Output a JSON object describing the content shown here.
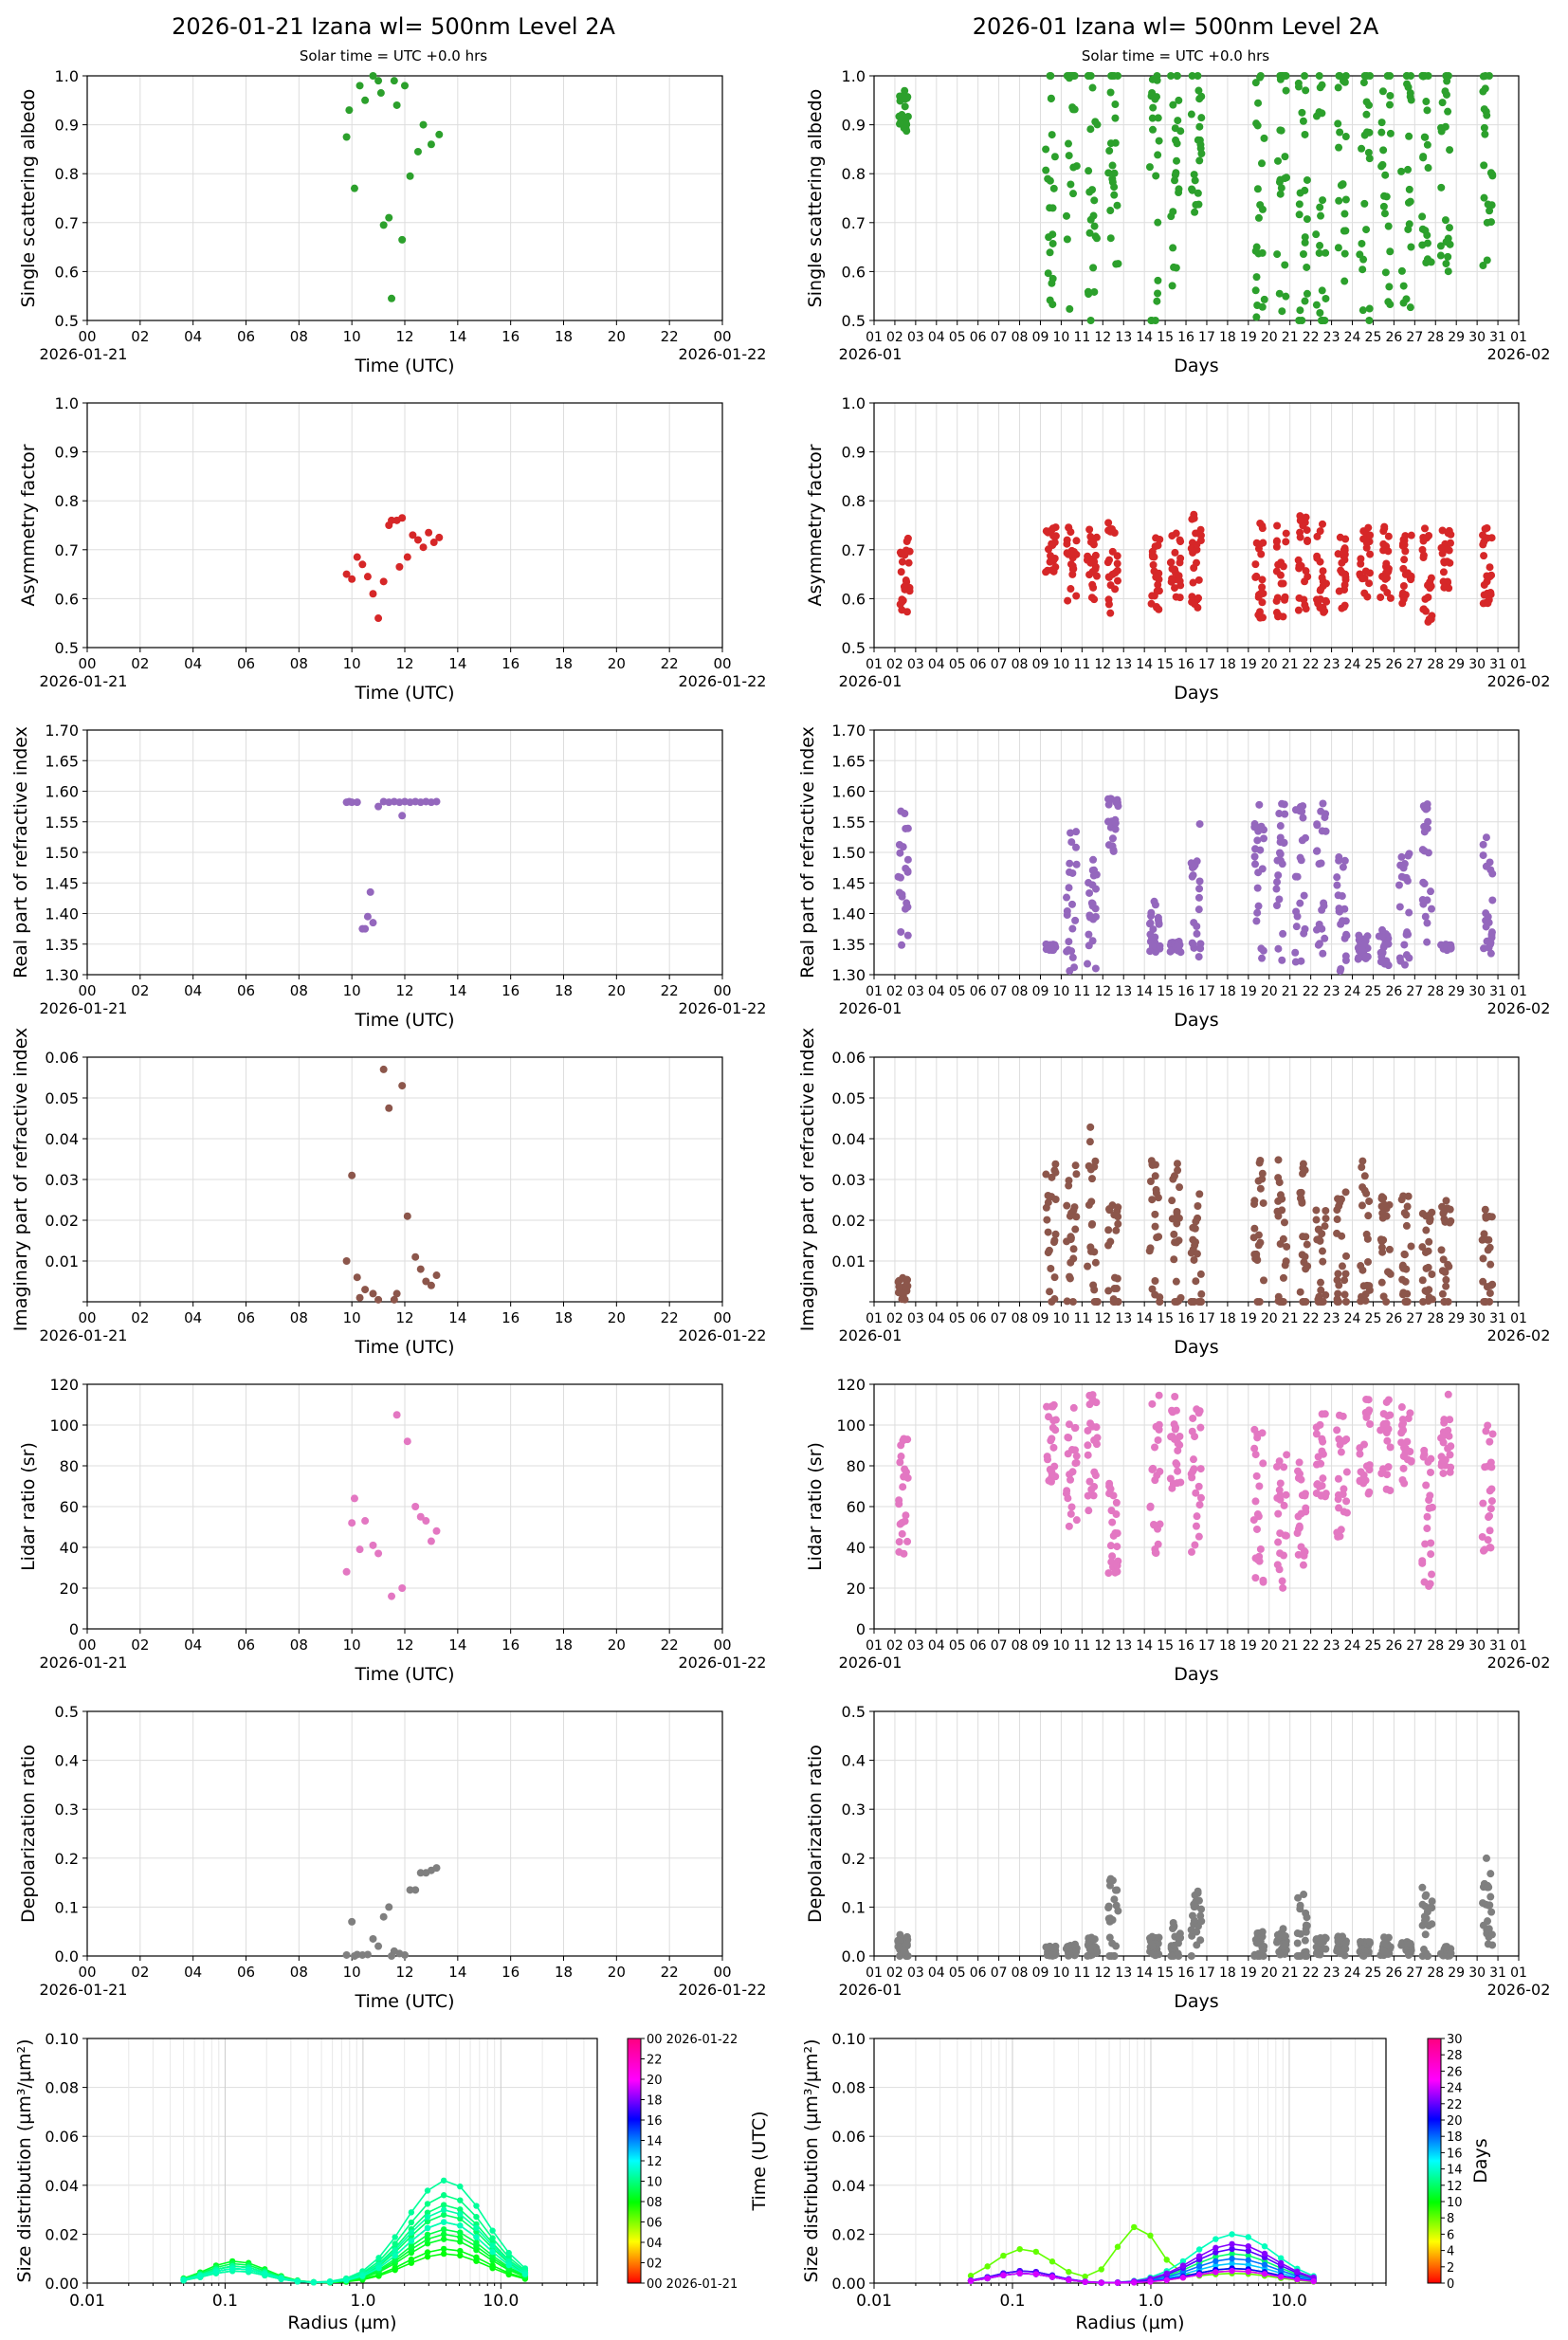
{
  "titles": {
    "left": "2026-01-21  Izana  wl= 500nm  Level 2A",
    "right": "2026-01  Izana  wl= 500nm  Level 2A",
    "subtitle_left": "Solar time = UTC +0.0 hrs",
    "subtitle_right": "Solar time = UTC +0.0 hrs"
  },
  "axes": {
    "daily_ticks": [
      "00",
      "02",
      "04",
      "06",
      "08",
      "10",
      "12",
      "14",
      "16",
      "18",
      "20",
      "22",
      "00"
    ],
    "daily_start": "2026-01-21",
    "daily_end": "2026-01-22",
    "daily_xlabel": "Time (UTC)",
    "monthly_ticks": [
      "01",
      "02",
      "03",
      "04",
      "05",
      "06",
      "07",
      "08",
      "09",
      "10",
      "11",
      "12",
      "13",
      "14",
      "15",
      "16",
      "17",
      "18",
      "19",
      "20",
      "21",
      "22",
      "23",
      "24",
      "25",
      "26",
      "27",
      "28",
      "29",
      "30",
      "31",
      "01"
    ],
    "monthly_start": "2026-01",
    "monthly_end": "2026-02",
    "monthly_xlabel": "Days",
    "radius_xlabel": "Radius (µm)",
    "radius_ticks": [
      "0.01",
      "0.1",
      "1.0",
      "10.0"
    ],
    "size_ylabel": "Size distribution (µm³/µm²)",
    "cb_left_label": "Time (UTC)",
    "cb_right_label": "Days",
    "cb_left_ticks": [
      "00 2026-01-21",
      "02",
      "04",
      "06",
      "08",
      "10",
      "12",
      "14",
      "16",
      "18",
      "20",
      "22",
      "00 2026-01-22"
    ],
    "cb_right_ticks": [
      "0",
      "2",
      "4",
      "6",
      "8",
      "10",
      "12",
      "14",
      "16",
      "18",
      "20",
      "22",
      "24",
      "26",
      "28",
      "30"
    ]
  },
  "chart_data": [
    {
      "type": "scatter",
      "name": "ssa",
      "title": "",
      "ylabel": "Single scattering albedo",
      "color": "#2ca02c",
      "ylim": [
        0.5,
        1.0
      ],
      "yticks": [
        "0.5",
        "0.6",
        "0.7",
        "0.8",
        "0.9",
        "1.0"
      ],
      "daily": {
        "x": [
          9.8,
          9.9,
          10.1,
          10.3,
          10.5,
          10.8,
          11.0,
          11.2,
          11.4,
          11.5,
          11.7,
          11.9,
          12.2,
          12.5,
          12.7,
          13.0,
          13.3,
          11.1,
          11.6,
          12.0
        ],
        "y": [
          0.875,
          0.93,
          0.77,
          0.98,
          0.95,
          1.0,
          0.99,
          0.695,
          0.71,
          0.545,
          0.94,
          0.665,
          0.795,
          0.845,
          0.9,
          0.86,
          0.88,
          0.965,
          0.99,
          0.98
        ]
      },
      "monthly_clusters": [
        [
          2.4,
          0.92,
          0.05
        ],
        [
          9.5,
          0.78,
          0.25
        ],
        [
          10.5,
          0.82,
          0.3
        ],
        [
          11.5,
          0.78,
          0.3
        ],
        [
          12.5,
          0.85,
          0.25
        ],
        [
          14.5,
          0.72,
          0.3
        ],
        [
          15.5,
          0.8,
          0.25
        ],
        [
          16.5,
          0.87,
          0.15
        ],
        [
          19.6,
          0.78,
          0.3
        ],
        [
          20.6,
          0.8,
          0.3
        ],
        [
          21.6,
          0.78,
          0.3
        ],
        [
          22.5,
          0.75,
          0.3
        ],
        [
          23.5,
          0.82,
          0.25
        ],
        [
          24.6,
          0.75,
          0.3
        ],
        [
          25.6,
          0.8,
          0.3
        ],
        [
          26.6,
          0.82,
          0.3
        ],
        [
          27.6,
          0.82,
          0.3
        ],
        [
          28.5,
          0.85,
          0.25
        ],
        [
          30.5,
          0.85,
          0.25
        ]
      ]
    },
    {
      "type": "scatter",
      "name": "asym",
      "title": "",
      "ylabel": "Asymmetry factor",
      "color": "#d62728",
      "ylim": [
        0.5,
        1.0
      ],
      "yticks": [
        "0.5",
        "0.6",
        "0.7",
        "0.8",
        "0.9",
        "1.0"
      ],
      "daily": {
        "x": [
          9.8,
          10.0,
          10.2,
          10.4,
          10.6,
          10.8,
          11.0,
          11.2,
          11.4,
          11.5,
          11.7,
          11.9,
          12.1,
          12.3,
          12.5,
          12.7,
          12.9,
          13.1,
          13.3,
          11.8
        ],
        "y": [
          0.65,
          0.64,
          0.685,
          0.67,
          0.645,
          0.61,
          0.56,
          0.635,
          0.75,
          0.76,
          0.76,
          0.765,
          0.685,
          0.73,
          0.72,
          0.705,
          0.735,
          0.715,
          0.725,
          0.665
        ]
      },
      "monthly_clusters": [
        [
          2.5,
          0.65,
          0.08
        ],
        [
          9.5,
          0.7,
          0.05
        ],
        [
          10.5,
          0.67,
          0.08
        ],
        [
          11.5,
          0.67,
          0.08
        ],
        [
          12.5,
          0.67,
          0.1
        ],
        [
          14.5,
          0.65,
          0.08
        ],
        [
          15.5,
          0.67,
          0.08
        ],
        [
          16.5,
          0.68,
          0.1
        ],
        [
          19.5,
          0.66,
          0.1
        ],
        [
          20.6,
          0.66,
          0.1
        ],
        [
          21.6,
          0.67,
          0.1
        ],
        [
          22.5,
          0.66,
          0.1
        ],
        [
          23.5,
          0.66,
          0.08
        ],
        [
          24.6,
          0.68,
          0.08
        ],
        [
          25.6,
          0.68,
          0.08
        ],
        [
          26.6,
          0.67,
          0.08
        ],
        [
          27.6,
          0.65,
          0.1
        ],
        [
          28.5,
          0.68,
          0.06
        ],
        [
          30.5,
          0.67,
          0.08
        ]
      ]
    },
    {
      "type": "scatter",
      "name": "rri",
      "title": "",
      "ylabel": "Real part of refractive index",
      "color": "#9467bd",
      "ylim": [
        1.3,
        1.7
      ],
      "yticks": [
        "1.30",
        "1.35",
        "1.40",
        "1.45",
        "1.50",
        "1.55",
        "1.60",
        "1.65",
        "1.70"
      ],
      "daily": {
        "x": [
          9.8,
          9.9,
          10.0,
          10.2,
          10.4,
          10.6,
          10.8,
          11.0,
          11.2,
          11.4,
          11.6,
          11.8,
          12.0,
          12.2,
          12.4,
          12.6,
          12.8,
          13.0,
          13.2,
          10.5,
          10.7,
          11.9
        ],
        "y": [
          1.582,
          1.583,
          1.582,
          1.582,
          1.375,
          1.395,
          1.385,
          1.575,
          1.583,
          1.582,
          1.583,
          1.582,
          1.583,
          1.582,
          1.583,
          1.582,
          1.583,
          1.582,
          1.583,
          1.375,
          1.435,
          1.56
        ]
      },
      "monthly_clusters": [
        [
          2.4,
          1.46,
          0.12
        ],
        [
          9.5,
          1.345,
          0.005
        ],
        [
          10.5,
          1.4,
          0.15
        ],
        [
          11.5,
          1.4,
          0.1
        ],
        [
          12.5,
          1.55,
          0.05
        ],
        [
          14.5,
          1.37,
          0.05
        ],
        [
          15.5,
          1.345,
          0.01
        ],
        [
          16.5,
          1.45,
          0.13
        ],
        [
          19.5,
          1.45,
          0.13
        ],
        [
          20.6,
          1.45,
          0.13
        ],
        [
          21.5,
          1.45,
          0.13
        ],
        [
          22.5,
          1.45,
          0.13
        ],
        [
          23.5,
          1.4,
          0.1
        ],
        [
          24.5,
          1.345,
          0.02
        ],
        [
          25.5,
          1.345,
          0.03
        ],
        [
          26.5,
          1.4,
          0.1
        ],
        [
          27.6,
          1.45,
          0.13
        ],
        [
          28.5,
          1.345,
          0.005
        ],
        [
          30.5,
          1.45,
          0.13
        ]
      ]
    },
    {
      "type": "scatter",
      "name": "iri",
      "title": "",
      "ylabel": "Imaginary part of refractive index",
      "color": "#8c564b",
      "ylim": [
        0.0,
        0.06
      ],
      "yticks": [
        "",
        "0.01",
        "0.02",
        "0.03",
        "0.04",
        "0.05",
        "0.06"
      ],
      "daily": {
        "x": [
          9.8,
          10.0,
          10.2,
          10.5,
          10.8,
          11.0,
          11.2,
          11.4,
          11.7,
          11.9,
          12.1,
          12.4,
          12.6,
          12.8,
          13.0,
          13.2,
          11.6,
          10.3
        ],
        "y": [
          0.01,
          0.031,
          0.006,
          0.003,
          0.002,
          0.0005,
          0.057,
          0.0475,
          0.002,
          0.053,
          0.021,
          0.011,
          0.008,
          0.005,
          0.004,
          0.0065,
          0.0005,
          0.001
        ]
      },
      "monthly_clusters": [
        [
          2.4,
          0.003,
          0.003
        ],
        [
          9.5,
          0.015,
          0.02
        ],
        [
          10.5,
          0.015,
          0.02
        ],
        [
          11.5,
          0.02,
          0.025
        ],
        [
          12.5,
          0.01,
          0.015
        ],
        [
          14.5,
          0.015,
          0.02
        ],
        [
          15.5,
          0.015,
          0.02
        ],
        [
          16.5,
          0.015,
          0.02
        ],
        [
          19.5,
          0.015,
          0.02
        ],
        [
          20.6,
          0.015,
          0.02
        ],
        [
          21.6,
          0.015,
          0.02
        ],
        [
          22.5,
          0.01,
          0.015
        ],
        [
          23.5,
          0.012,
          0.015
        ],
        [
          24.6,
          0.015,
          0.02
        ],
        [
          25.6,
          0.012,
          0.015
        ],
        [
          26.6,
          0.012,
          0.015
        ],
        [
          27.6,
          0.01,
          0.015
        ],
        [
          28.5,
          0.01,
          0.015
        ],
        [
          30.5,
          0.01,
          0.015
        ]
      ]
    },
    {
      "type": "scatter",
      "name": "lidar",
      "title": "",
      "ylabel": "Lidar ratio (sr)",
      "color": "#e377c2",
      "ylim": [
        0,
        120
      ],
      "yticks": [
        "0",
        "20",
        "40",
        "60",
        "80",
        "100",
        "120"
      ],
      "daily": {
        "x": [
          9.8,
          10.0,
          10.1,
          10.3,
          10.5,
          10.8,
          11.0,
          11.5,
          11.7,
          11.9,
          12.1,
          12.4,
          12.6,
          12.8,
          13.0,
          13.2
        ],
        "y": [
          28,
          52,
          64,
          39,
          53,
          41,
          37,
          16,
          105,
          20,
          92,
          60,
          55,
          53,
          43,
          48
        ]
      },
      "monthly_clusters": [
        [
          2.4,
          65,
          30
        ],
        [
          9.5,
          90,
          20
        ],
        [
          10.5,
          80,
          30
        ],
        [
          11.5,
          85,
          30
        ],
        [
          12.5,
          50,
          25
        ],
        [
          14.5,
          75,
          40
        ],
        [
          15.5,
          85,
          30
        ],
        [
          16.5,
          70,
          40
        ],
        [
          19.5,
          60,
          40
        ],
        [
          20.6,
          55,
          35
        ],
        [
          21.6,
          55,
          30
        ],
        [
          22.5,
          85,
          25
        ],
        [
          23.5,
          75,
          30
        ],
        [
          24.6,
          90,
          25
        ],
        [
          25.6,
          90,
          25
        ],
        [
          26.6,
          90,
          20
        ],
        [
          27.6,
          55,
          35
        ],
        [
          28.5,
          95,
          20
        ],
        [
          30.5,
          65,
          35
        ]
      ]
    },
    {
      "type": "scatter",
      "name": "depol",
      "title": "",
      "ylabel": "Depolarization ratio",
      "color": "#7f7f7f",
      "ylim": [
        0.0,
        0.5
      ],
      "yticks": [
        "0.0",
        "0.1",
        "0.2",
        "0.3",
        "0.4",
        "0.5"
      ],
      "daily": {
        "x": [
          9.8,
          10.0,
          10.2,
          10.4,
          10.6,
          10.8,
          11.0,
          11.2,
          11.4,
          11.6,
          11.8,
          12.0,
          12.2,
          12.4,
          12.6,
          12.8,
          13.0,
          13.2,
          10.1,
          11.5
        ],
        "y": [
          0.002,
          0.07,
          0.003,
          0.002,
          0.003,
          0.035,
          0.02,
          0.08,
          0.1,
          0.01,
          0.005,
          0.002,
          0.135,
          0.135,
          0.17,
          0.17,
          0.175,
          0.18,
          0.0,
          0.0
        ]
      },
      "monthly_clusters": [
        [
          2.4,
          0.02,
          0.03
        ],
        [
          9.5,
          0.01,
          0.01
        ],
        [
          10.5,
          0.015,
          0.015
        ],
        [
          11.5,
          0.02,
          0.02
        ],
        [
          12.5,
          0.08,
          0.1
        ],
        [
          14.5,
          0.02,
          0.02
        ],
        [
          15.5,
          0.03,
          0.04
        ],
        [
          16.5,
          0.06,
          0.08
        ],
        [
          19.5,
          0.02,
          0.03
        ],
        [
          20.6,
          0.03,
          0.03
        ],
        [
          21.6,
          0.06,
          0.08
        ],
        [
          22.5,
          0.02,
          0.02
        ],
        [
          23.5,
          0.02,
          0.02
        ],
        [
          24.6,
          0.015,
          0.015
        ],
        [
          25.6,
          0.02,
          0.02
        ],
        [
          26.6,
          0.015,
          0.015
        ],
        [
          27.6,
          0.06,
          0.08
        ],
        [
          28.5,
          0.01,
          0.01
        ],
        [
          30.5,
          0.1,
          0.1
        ]
      ]
    }
  ],
  "size_data": {
    "type": "line",
    "ylim": [
      0.0,
      0.1
    ],
    "yticks": [
      "0.00",
      "0.02",
      "0.04",
      "0.06",
      "0.08",
      "0.10"
    ],
    "xlim": [
      0.01,
      50
    ],
    "radius": [
      0.05,
      0.066,
      0.086,
      0.113,
      0.148,
      0.194,
      0.255,
      0.335,
      0.439,
      0.576,
      0.756,
      0.992,
      1.302,
      1.708,
      2.241,
      2.94,
      3.857,
      5.06,
      6.638,
      8.708,
      11.42,
      14.99
    ],
    "daily_peaks": [
      {
        "t": 9.8,
        "fine": 0.006,
        "coarse": 0.012
      },
      {
        "t": 10.0,
        "fine": 0.007,
        "coarse": 0.014
      },
      {
        "t": 10.3,
        "fine": 0.009,
        "coarse": 0.018
      },
      {
        "t": 10.6,
        "fine": 0.006,
        "coarse": 0.02
      },
      {
        "t": 10.9,
        "fine": 0.007,
        "coarse": 0.022
      },
      {
        "t": 11.2,
        "fine": 0.008,
        "coarse": 0.025
      },
      {
        "t": 11.5,
        "fine": 0.005,
        "coarse": 0.028
      },
      {
        "t": 11.8,
        "fine": 0.006,
        "coarse": 0.032
      },
      {
        "t": 12.1,
        "fine": 0.006,
        "coarse": 0.036
      },
      {
        "t": 12.5,
        "fine": 0.007,
        "coarse": 0.042
      },
      {
        "t": 12.8,
        "fine": 0.005,
        "coarse": 0.03
      },
      {
        "t": 13.1,
        "fine": 0.006,
        "coarse": 0.025
      }
    ],
    "monthly_peaks": [
      {
        "d": 2,
        "fine": 0.004,
        "coarse": 0.005
      },
      {
        "d": 10,
        "fine": 0.014,
        "coarse": 0.004,
        "accum": 0.023
      },
      {
        "d": 12,
        "fine": 0.004,
        "coarse": 0.006
      },
      {
        "d": 15,
        "fine": 0.005,
        "coarse": 0.012
      },
      {
        "d": 17,
        "fine": 0.004,
        "coarse": 0.02
      },
      {
        "d": 20,
        "fine": 0.004,
        "coarse": 0.008
      },
      {
        "d": 22,
        "fine": 0.005,
        "coarse": 0.01
      },
      {
        "d": 25,
        "fine": 0.004,
        "coarse": 0.006
      },
      {
        "d": 27,
        "fine": 0.005,
        "coarse": 0.014
      },
      {
        "d": 28,
        "fine": 0.004,
        "coarse": 0.016
      },
      {
        "d": 30,
        "fine": 0.004,
        "coarse": 0.005
      }
    ]
  }
}
